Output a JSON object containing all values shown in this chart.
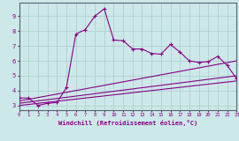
{
  "xlabel": "Windchill (Refroidissement éolien,°C)",
  "background_color": "#cde8e8",
  "grid_color": "#aacccc",
  "line_color": "#880088",
  "x_range": [
    0,
    23
  ],
  "y_range": [
    2.7,
    9.9
  ],
  "x_ticks": [
    0,
    1,
    2,
    3,
    4,
    5,
    6,
    7,
    8,
    9,
    10,
    11,
    12,
    13,
    14,
    15,
    16,
    17,
    18,
    19,
    20,
    21,
    22,
    23
  ],
  "y_ticks": [
    3,
    4,
    5,
    6,
    7,
    8,
    9
  ],
  "curve1_x": [
    0,
    1,
    2,
    3,
    4,
    5,
    6,
    7,
    8,
    9,
    10,
    11,
    12,
    13,
    14,
    15,
    16,
    17,
    18,
    19,
    20,
    21,
    22,
    23
  ],
  "curve1_y": [
    3.5,
    3.5,
    3.0,
    3.15,
    3.2,
    4.2,
    7.8,
    8.1,
    9.0,
    9.5,
    7.4,
    7.35,
    6.8,
    6.8,
    6.5,
    6.45,
    7.1,
    6.6,
    6.0,
    5.9,
    5.95,
    6.3,
    5.7,
    4.8
  ],
  "line2_x": [
    0,
    23
  ],
  "line2_y": [
    3.3,
    6.0
  ],
  "line3_x": [
    0,
    23
  ],
  "line3_y": [
    3.15,
    5.0
  ],
  "line4_x": [
    0,
    23
  ],
  "line4_y": [
    3.0,
    4.65
  ]
}
